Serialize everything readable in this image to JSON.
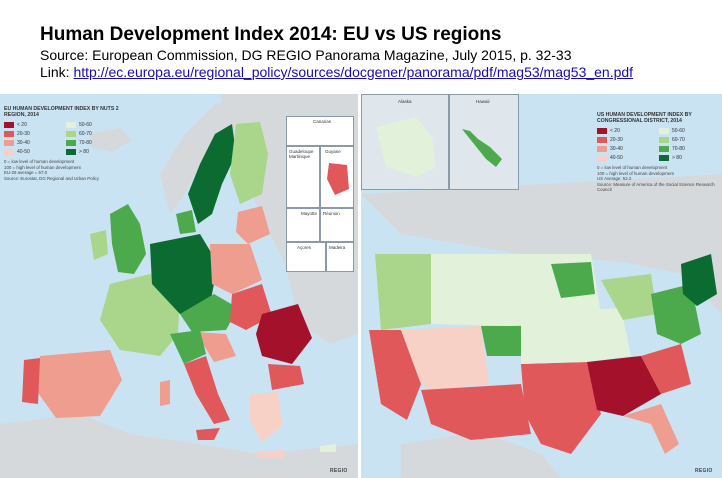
{
  "header": {
    "title": "Human Development Index 2014: EU vs US regions",
    "source": "Source: European Commission, DG REGIO Panorama Magazine, July 2015, p. 32-33",
    "link_label": "Link: ",
    "link_url": "http://ec.europa.eu/regional_policy/sources/docgener/panorama/pdf/mag53/mag53_en.pdf"
  },
  "colors": {
    "lt20": "#a3112a",
    "c20_30": "#e0585a",
    "c30_40": "#ef9d8e",
    "c40_50": "#f8d1c6",
    "c50_60": "#e2f1d9",
    "c60_70": "#a9d68a",
    "c70_80": "#4caa4c",
    "gt80": "#0b6b30",
    "sea": "#c9e3f3",
    "land_other": "#d5d9dc"
  },
  "eu_map": {
    "legend_title": "EU HUMAN DEVELOPMENT INDEX BY NUTS 2 REGION, 2014",
    "bins": [
      "< 20",
      "50-60",
      "20-30",
      "60-70",
      "30-40",
      "70-80",
      "40-50",
      "> 80"
    ],
    "note1": "0 = low level of human development",
    "note2": "100 = high level of human development",
    "note3": "EU-28 average = 57.0",
    "note4": "Source: Eurostat, DG Regional and Urban Policy",
    "insets": [
      "Canarias",
      "Guadeloupe Martinique",
      "Guyane",
      "Mayotte",
      "Réunion",
      "Açores",
      "Madeira"
    ],
    "footer": "REGIO"
  },
  "us_map": {
    "legend_title": "US HUMAN DEVELOPMENT INDEX BY CONGRESSIONAL DISTRICT, 2014",
    "bins": [
      "< 20",
      "50-60",
      "20-30",
      "60-70",
      "30-40",
      "70-80",
      "40-50",
      "> 80"
    ],
    "note1": "0 = low level of human development",
    "note2": "100 = high level of human development",
    "note3": "US Average: 52.2",
    "note4": "Source: Measure of America of the Social Science Research Council",
    "insets": [
      "Alaska",
      "Hawaii"
    ],
    "footer": "REGIO"
  }
}
